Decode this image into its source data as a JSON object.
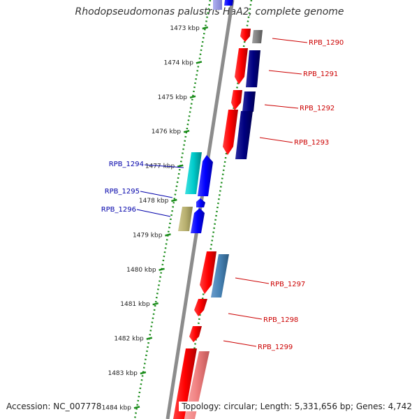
{
  "title": "Rhodopseudomonas palustris HaA2, complete genome",
  "footer": {
    "accession": "Accession: NC_007778",
    "summary": "Topology: circular; Length: 5,331,656 bp; Genes: 4,742"
  },
  "colors": {
    "backbone": "#8c8c8c",
    "dotted_track": "#1a8c1a",
    "label_forward": "#cc0000",
    "label_reverse": "#0000aa",
    "gene_red": "#ff0000",
    "gene_navy": "#000080",
    "gene_blue": "#0000ff",
    "gene_cyan": "#00cccc",
    "gene_khaki": "#b8b070",
    "gene_steel": "#4682b4",
    "gene_gray": "#808080",
    "gene_pink": "#f08080"
  },
  "scale": {
    "unit": "kbp",
    "ticks": [
      {
        "kbp": 1473,
        "label": "1473 kbp"
      },
      {
        "kbp": 1474,
        "label": "1474 kbp"
      },
      {
        "kbp": 1475,
        "label": "1475 kbp"
      },
      {
        "kbp": 1476,
        "label": "1476 kbp"
      },
      {
        "kbp": 1477,
        "label": "1477 kbp"
      },
      {
        "kbp": 1478,
        "label": "1478 kbp"
      },
      {
        "kbp": 1479,
        "label": "1479 kbp"
      },
      {
        "kbp": 1480,
        "label": "1480 kbp"
      },
      {
        "kbp": 1481,
        "label": "1481 kbp"
      },
      {
        "kbp": 1482,
        "label": "1482 kbp"
      },
      {
        "kbp": 1483,
        "label": "1483 kbp"
      },
      {
        "kbp": 1484,
        "label": "1484 kbp"
      }
    ]
  },
  "gene_labels": [
    {
      "id": "RPB_1290",
      "label": "RPB_1290",
      "strand": "forward"
    },
    {
      "id": "RPB_1291",
      "label": "RPB_1291",
      "strand": "forward"
    },
    {
      "id": "RPB_1292",
      "label": "RPB_1292",
      "strand": "forward"
    },
    {
      "id": "RPB_1293",
      "label": "RPB_1293",
      "strand": "forward"
    },
    {
      "id": "RPB_1294",
      "label": "RPB_1294",
      "strand": "reverse"
    },
    {
      "id": "RPB_1295",
      "label": "RPB_1295",
      "strand": "reverse"
    },
    {
      "id": "RPB_1296",
      "label": "RPB_1296",
      "strand": "reverse"
    },
    {
      "id": "RPB_1297",
      "label": "RPB_1297",
      "strand": "forward"
    },
    {
      "id": "RPB_1298",
      "label": "RPB_1298",
      "strand": "forward"
    },
    {
      "id": "RPB_1299",
      "label": "RPB_1299",
      "strand": "forward"
    }
  ]
}
